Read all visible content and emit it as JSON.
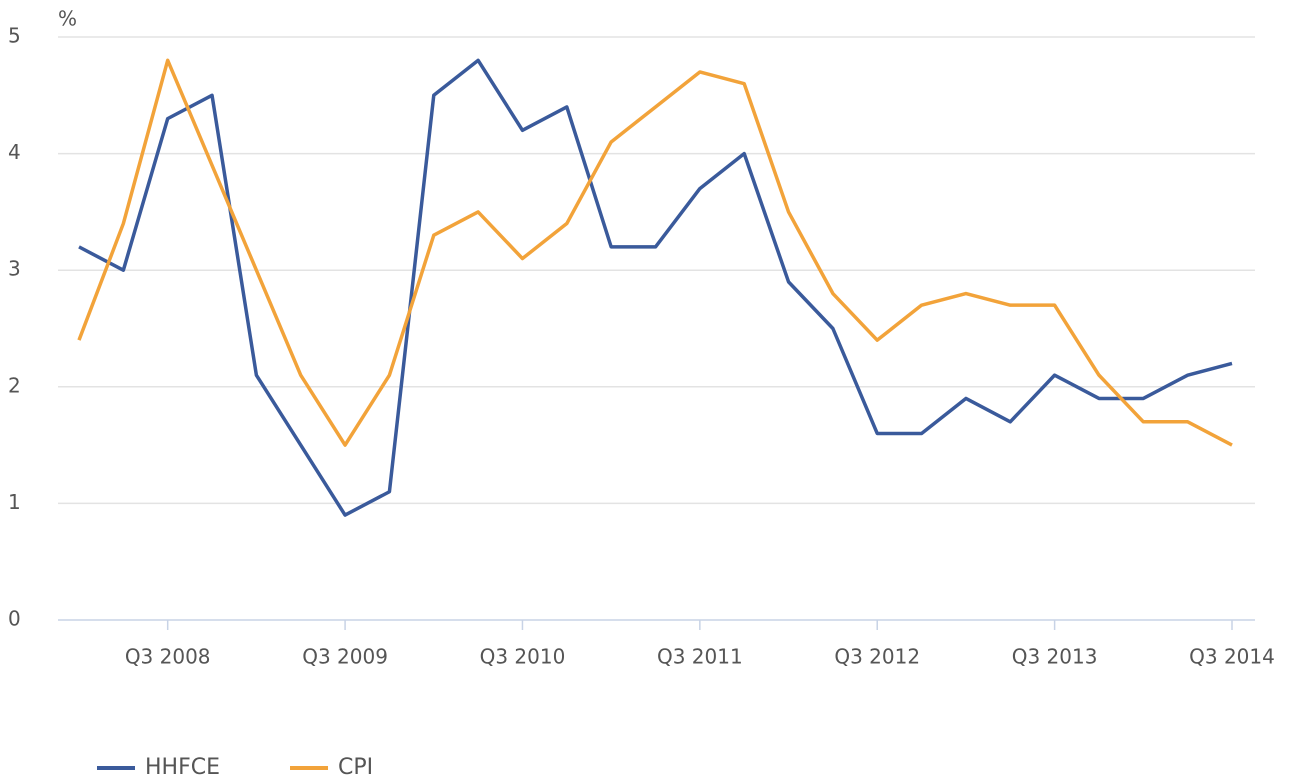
{
  "chart_data": {
    "type": "line",
    "ylabel": "%",
    "categories": [
      null,
      null,
      "Q3 2008",
      null,
      null,
      null,
      "Q3 2009",
      null,
      null,
      null,
      "Q3 2010",
      null,
      null,
      null,
      "Q3 2011",
      null,
      null,
      null,
      "Q3 2012",
      null,
      null,
      null,
      "Q3 2013",
      null,
      null,
      null,
      "Q3 2014"
    ],
    "series": [
      {
        "name": "HHFCE",
        "color": "#3a5a9b",
        "values": [
          3.2,
          3.0,
          4.3,
          4.5,
          2.1,
          1.5,
          0.9,
          1.1,
          4.5,
          4.8,
          4.2,
          4.4,
          3.2,
          3.2,
          3.7,
          4.0,
          2.9,
          2.5,
          1.6,
          1.6,
          1.9,
          1.7,
          2.1,
          1.9,
          1.9,
          2.1,
          2.2
        ]
      },
      {
        "name": "CPI",
        "color": "#f2a33a",
        "values": [
          2.4,
          3.4,
          4.8,
          3.9,
          3.0,
          2.1,
          1.5,
          2.1,
          3.3,
          3.5,
          3.1,
          3.4,
          4.1,
          4.4,
          4.7,
          4.6,
          3.5,
          2.8,
          2.4,
          2.7,
          2.8,
          2.7,
          2.7,
          2.1,
          1.7,
          1.7,
          1.5
        ]
      }
    ],
    "ylim": [
      0,
      5
    ],
    "yticks": [
      0,
      1,
      2,
      3,
      4,
      5
    ],
    "grid": true,
    "legend": "bottom-left"
  }
}
